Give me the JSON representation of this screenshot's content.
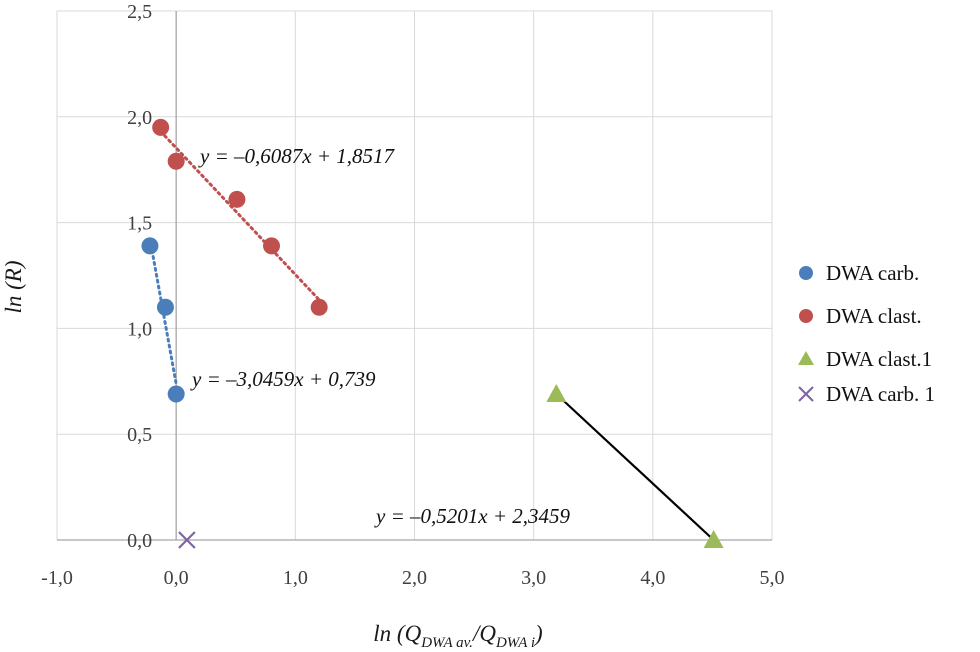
{
  "chart_data": {
    "type": "scatter",
    "title": "",
    "xlabel_prefix": "ln (Q",
    "xlabel_sub1": "DWA av.",
    "xlabel_mid": "/Q",
    "xlabel_sub2": "DWA i",
    "xlabel_suffix": ")",
    "ylabel": "ln (R)",
    "xlim": [
      -1.0,
      5.0
    ],
    "ylim": [
      0.0,
      2.5
    ],
    "xticks": [
      -1.0,
      0.0,
      1.0,
      2.0,
      3.0,
      4.0,
      5.0
    ],
    "xtick_labels": [
      "-1,0",
      "0,0",
      "1,0",
      "2,0",
      "3,0",
      "4,0",
      "5,0"
    ],
    "yticks": [
      0.0,
      0.5,
      1.0,
      1.5,
      2.0,
      2.5
    ],
    "ytick_labels": [
      "0,0",
      "0,5",
      "1,0",
      "1,5",
      "2,0",
      "2,5"
    ],
    "grid": true,
    "legend_position": "right",
    "series": [
      {
        "name": "DWA carb.",
        "marker": "circle",
        "color": "#4a7ebb",
        "points": [
          [
            -0.22,
            1.39
          ],
          [
            -0.09,
            1.1
          ],
          [
            0.0,
            0.69
          ]
        ],
        "trendline": {
          "color": "#4a7ebb",
          "style": "dotted",
          "x_range": [
            -0.22,
            0.0
          ],
          "equation": "y = –3,0459x + 0,739"
        }
      },
      {
        "name": "DWA clast.",
        "marker": "circle",
        "color": "#c0504d",
        "points": [
          [
            -0.13,
            1.95
          ],
          [
            0.0,
            1.79
          ],
          [
            0.51,
            1.61
          ],
          [
            0.8,
            1.39
          ],
          [
            1.2,
            1.1
          ]
        ],
        "trendline": {
          "color": "#c0504d",
          "style": "dotted",
          "x_range": [
            -0.13,
            1.2
          ],
          "equation": "y = –0,6087x + 1,8517"
        }
      },
      {
        "name": "DWA clast.1",
        "marker": "triangle",
        "color": "#9bbb59",
        "points": [
          [
            3.19,
            0.69
          ],
          [
            4.51,
            0.0
          ]
        ],
        "trendline": {
          "color": "#000000",
          "style": "solid",
          "x_range": [
            3.19,
            4.51
          ],
          "equation": "y = –0,5201x + 2,3459"
        }
      },
      {
        "name": "DWA carb. 1",
        "marker": "x",
        "color": "#8064a2",
        "points": [
          [
            0.09,
            0.0
          ]
        ]
      }
    ]
  }
}
